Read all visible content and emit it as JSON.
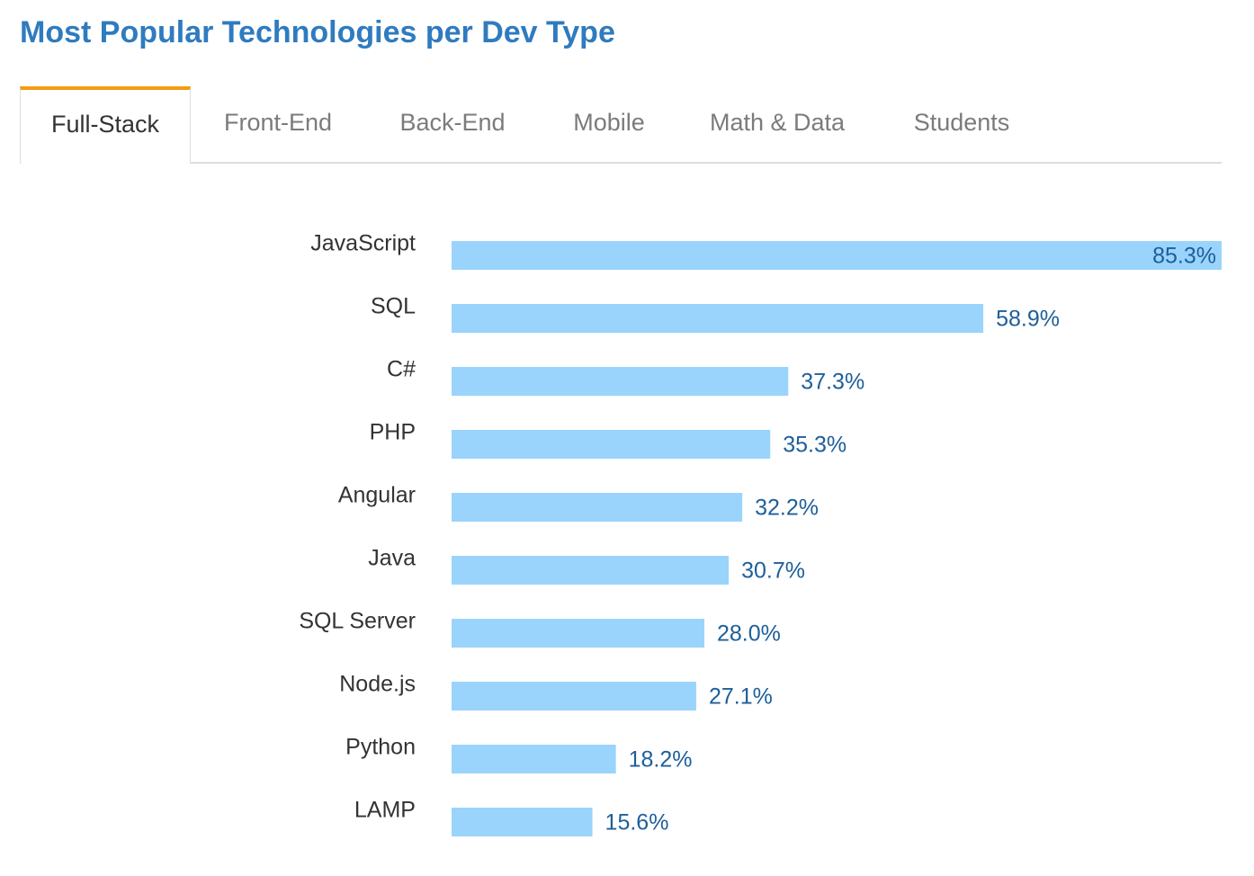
{
  "page": {
    "title": "Most Popular Technologies per Dev Type"
  },
  "tabs": [
    {
      "label": "Full-Stack",
      "active": true
    },
    {
      "label": "Front-End",
      "active": false
    },
    {
      "label": "Back-End",
      "active": false
    },
    {
      "label": "Mobile",
      "active": false
    },
    {
      "label": "Math & Data",
      "active": false
    },
    {
      "label": "Students",
      "active": false
    }
  ],
  "colors": {
    "title": "#2f7bbf",
    "active_tab_accent": "#f39c12",
    "bar": "#9ad4fc",
    "value_label": "#1d5f99",
    "category_label": "#333333"
  },
  "chart_data": {
    "type": "bar",
    "orientation": "horizontal",
    "categories": [
      "JavaScript",
      "SQL",
      "C#",
      "PHP",
      "Angular",
      "Java",
      "SQL Server",
      "Node.js",
      "Python",
      "LAMP"
    ],
    "values": [
      85.3,
      58.9,
      37.3,
      35.3,
      32.2,
      30.7,
      28.0,
      27.1,
      18.2,
      15.6
    ],
    "value_labels": [
      "85.3%",
      "58.9%",
      "37.3%",
      "35.3%",
      "32.2%",
      "30.7%",
      "28.0%",
      "27.1%",
      "18.2%",
      "15.6%"
    ],
    "xlim": [
      0,
      85.3
    ],
    "grid": false
  }
}
